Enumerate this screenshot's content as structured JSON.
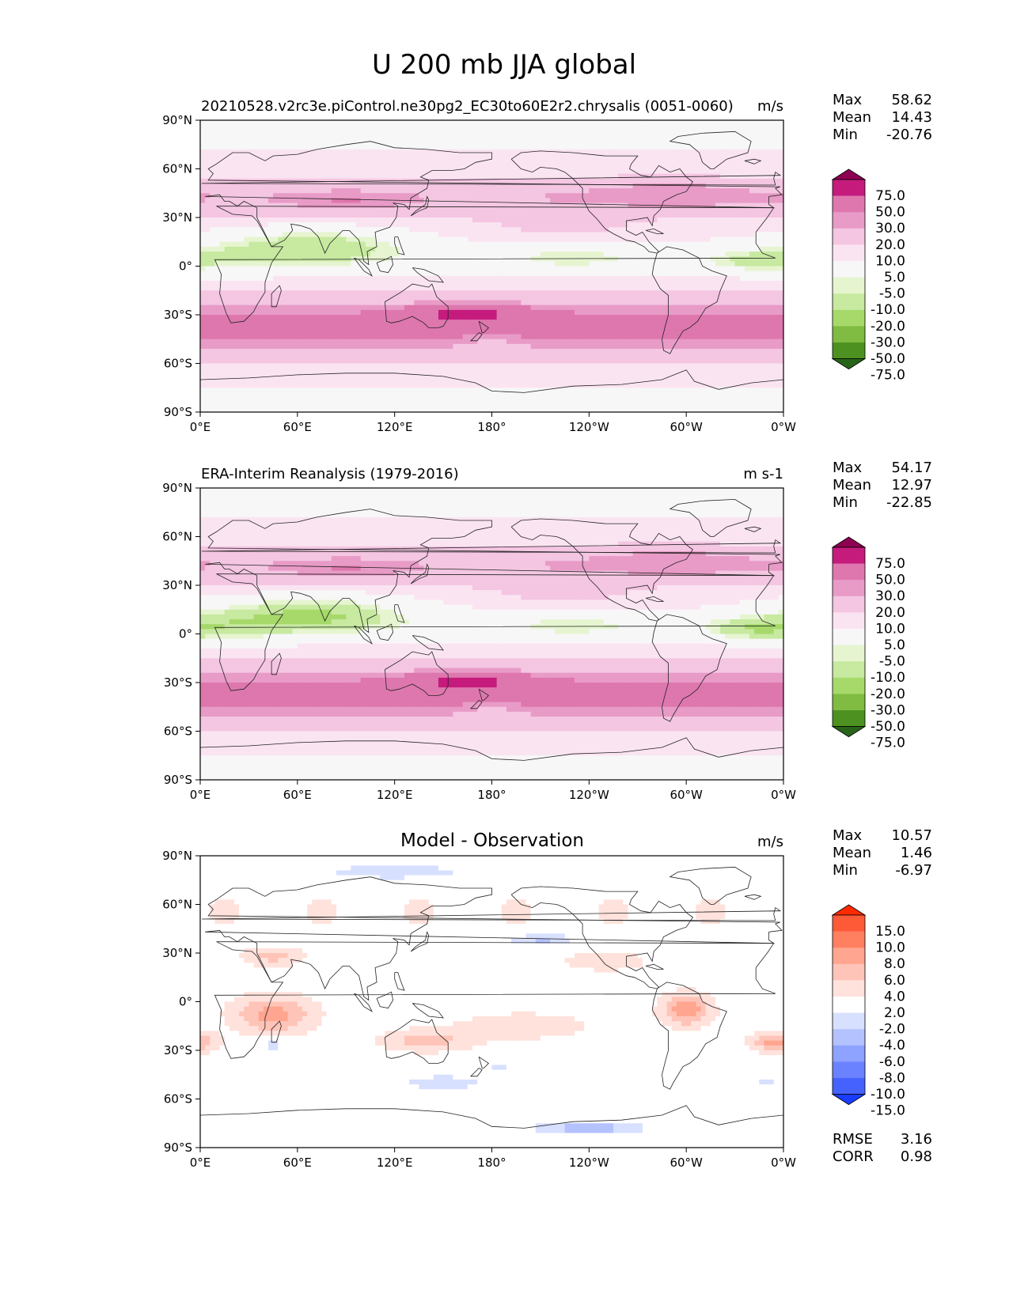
{
  "figure_title": "U 200 mb JJA global",
  "x_ticks": [
    "0°E",
    "60°E",
    "120°E",
    "180°",
    "120°W",
    "60°W",
    "0°W"
  ],
  "y_ticks": [
    "90°N",
    "60°N",
    "30°N",
    "0°",
    "30°S",
    "60°S",
    "90°S"
  ],
  "chart_data": [
    {
      "type": "heatmap",
      "title": "20210528.v2rc3e.piControl.ne30pg2_EC30to60E2r2.chrysalis (0051-0060)",
      "units": "m/s",
      "stats": [
        {
          "label": "Max",
          "value": "58.62"
        },
        {
          "label": "Mean",
          "value": "14.43"
        },
        {
          "label": "Min",
          "value": "-20.76"
        }
      ],
      "levels": [
        "75.0",
        "50.0",
        "30.0",
        "20.0",
        "10.0",
        "5.0",
        "-5.0",
        "-10.0",
        "-20.0",
        "-30.0",
        "-50.0",
        "-75.0"
      ],
      "colors": [
        "#8e0152",
        "#c51b7d",
        "#de77ae",
        "#e89bc7",
        "#f4c6e2",
        "#fbe4f1",
        "#f7f7f7",
        "#e6f5d0",
        "#c7e9a0",
        "#a6d96a",
        "#7fbc41",
        "#4d9221",
        "#276419"
      ],
      "xlim": [
        0,
        360
      ],
      "ylim": [
        -90,
        90
      ]
    },
    {
      "type": "heatmap",
      "title": "ERA-Interim Reanalysis (1979-2016)",
      "units": "m s-1",
      "stats": [
        {
          "label": "Max",
          "value": "54.17"
        },
        {
          "label": "Mean",
          "value": "12.97"
        },
        {
          "label": "Min",
          "value": "-22.85"
        }
      ],
      "levels": [
        "75.0",
        "50.0",
        "30.0",
        "20.0",
        "10.0",
        "5.0",
        "-5.0",
        "-10.0",
        "-20.0",
        "-30.0",
        "-50.0",
        "-75.0"
      ],
      "colors": [
        "#8e0152",
        "#c51b7d",
        "#de77ae",
        "#e89bc7",
        "#f4c6e2",
        "#fbe4f1",
        "#f7f7f7",
        "#e6f5d0",
        "#c7e9a0",
        "#a6d96a",
        "#7fbc41",
        "#4d9221",
        "#276419"
      ],
      "xlim": [
        0,
        360
      ],
      "ylim": [
        -90,
        90
      ]
    },
    {
      "type": "heatmap",
      "title": "Model - Observation",
      "units": "m/s",
      "stats": [
        {
          "label": "Max",
          "value": "10.57"
        },
        {
          "label": "Mean",
          "value": "1.46"
        },
        {
          "label": "Min",
          "value": "-6.97"
        }
      ],
      "levels": [
        "15.0",
        "10.0",
        "8.0",
        "6.0",
        "4.0",
        "2.0",
        "-2.0",
        "-4.0",
        "-6.0",
        "-8.0",
        "-10.0",
        "-15.0"
      ],
      "colors": [
        "#ff2a00",
        "#ff5a38",
        "#ff8060",
        "#ffa590",
        "#ffc4b8",
        "#ffe2dc",
        "#ffffff",
        "#d8e0ff",
        "#b4c2ff",
        "#8ea2ff",
        "#6a82ff",
        "#4562ff",
        "#1a3cff"
      ],
      "extra_stats": [
        {
          "label": "RMSE",
          "value": "3.16"
        },
        {
          "label": "CORR",
          "value": "0.98"
        }
      ],
      "xlim": [
        0,
        360
      ],
      "ylim": [
        -90,
        90
      ]
    }
  ]
}
